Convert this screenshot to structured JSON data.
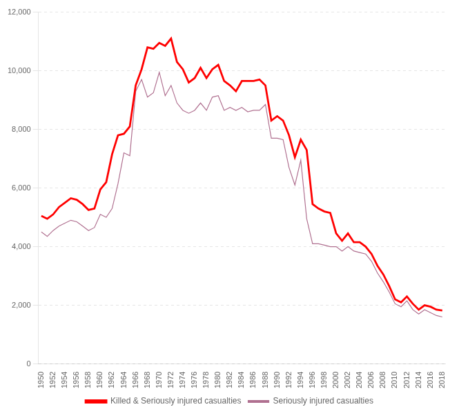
{
  "chart_data": {
    "type": "line",
    "x": [
      1950,
      1951,
      1952,
      1953,
      1954,
      1955,
      1956,
      1957,
      1958,
      1959,
      1960,
      1961,
      1962,
      1963,
      1964,
      1965,
      1966,
      1967,
      1968,
      1969,
      1970,
      1971,
      1972,
      1973,
      1974,
      1975,
      1976,
      1977,
      1978,
      1979,
      1980,
      1981,
      1982,
      1983,
      1984,
      1985,
      1986,
      1987,
      1988,
      1989,
      1990,
      1991,
      1992,
      1993,
      1994,
      1995,
      1996,
      1997,
      1998,
      1999,
      2000,
      2001,
      2002,
      2003,
      2004,
      2005,
      2006,
      2007,
      2008,
      2009,
      2010,
      2011,
      2012,
      2013,
      2014,
      2015,
      2016,
      2017,
      2018
    ],
    "series": [
      {
        "name": "Killed & Seriously injured casualties",
        "color": "#FF0000",
        "values": [
          5050,
          4950,
          5100,
          5350,
          5500,
          5650,
          5600,
          5450,
          5250,
          5300,
          5950,
          6200,
          7150,
          7800,
          7850,
          8100,
          9500,
          10050,
          10800,
          10750,
          10950,
          10850,
          11100,
          10300,
          10050,
          9600,
          9750,
          10100,
          9750,
          10050,
          10200,
          9650,
          9500,
          9300,
          9650,
          9650,
          9650,
          9700,
          9500,
          8300,
          8450,
          8300,
          7800,
          7050,
          7650,
          7300,
          5450,
          5300,
          5200,
          5150,
          4450,
          4200,
          4450,
          4150,
          4150,
          4000,
          3750,
          3350,
          3050,
          2650,
          2200,
          2100,
          2300,
          2050,
          1850,
          2000,
          1950,
          1850,
          1820
        ]
      },
      {
        "name": "Seriously injured casualties",
        "color": "#B07090",
        "values": [
          4500,
          4350,
          4550,
          4700,
          4800,
          4900,
          4850,
          4700,
          4550,
          4650,
          5100,
          5000,
          5300,
          6150,
          7200,
          7100,
          9300,
          9700,
          9100,
          9250,
          9950,
          9150,
          9500,
          8900,
          8650,
          8550,
          8650,
          8900,
          8650,
          9100,
          9150,
          8650,
          8750,
          8650,
          8750,
          8600,
          8650,
          8650,
          8850,
          7700,
          7700,
          7650,
          6700,
          6100,
          6950,
          4950,
          4100,
          4100,
          4050,
          4000,
          4000,
          3850,
          4000,
          3850,
          3800,
          3750,
          3500,
          3100,
          2800,
          2450,
          2050,
          1950,
          2150,
          1850,
          1700,
          1850,
          1750,
          1650,
          1600
        ]
      }
    ],
    "xlim": [
      1949.5,
      2018.5
    ],
    "xticks": [
      1950,
      1952,
      1954,
      1956,
      1958,
      1960,
      1962,
      1964,
      1966,
      1968,
      1970,
      1972,
      1974,
      1976,
      1978,
      1980,
      1982,
      1984,
      1986,
      1988,
      1990,
      1992,
      1994,
      1996,
      1998,
      2000,
      2002,
      2004,
      2006,
      2008,
      2010,
      2012,
      2014,
      2016,
      2018
    ],
    "ylim": [
      0,
      12000
    ],
    "yticks": [
      0,
      {
        "value": 2000,
        "label": "2,000"
      },
      {
        "value": 4000,
        "label": "4,000"
      },
      {
        "value": 6000,
        "label": "6,000"
      },
      {
        "value": 8000,
        "label": "8,000"
      },
      {
        "value": 10000,
        "label": "10,000"
      },
      {
        "value": 12000,
        "label": "12,000"
      }
    ],
    "grid": "y",
    "legend": "bottom",
    "line_style": "solid"
  }
}
